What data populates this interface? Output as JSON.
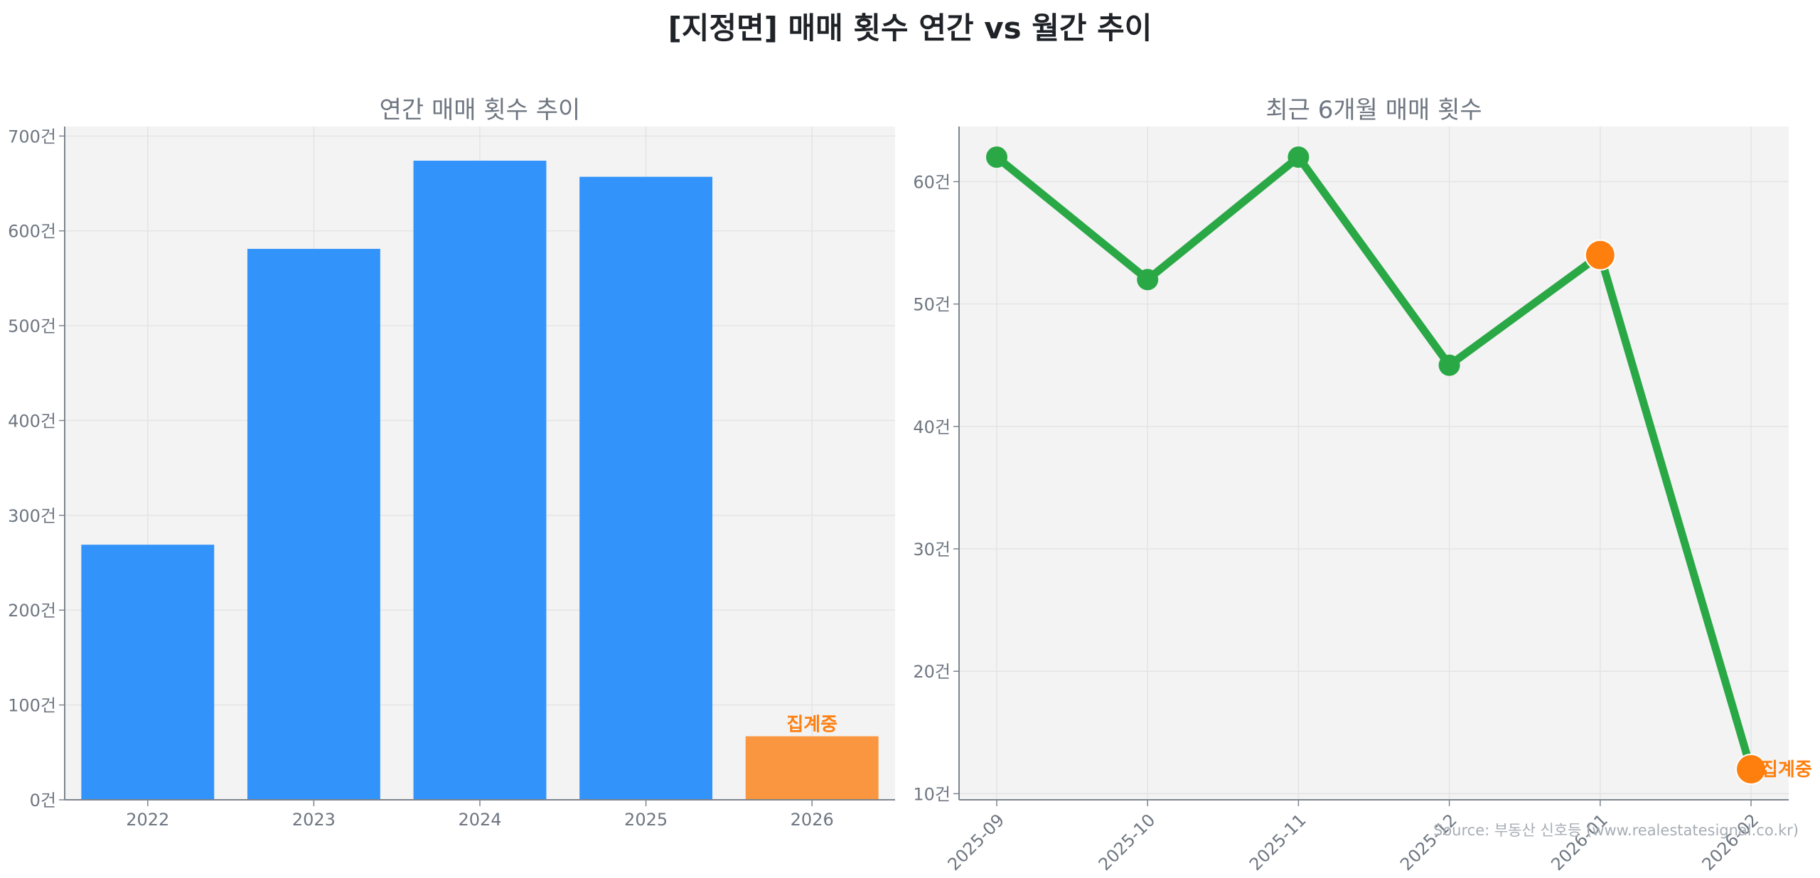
{
  "title": "[지정면] 매매 횟수 연간 vs 월간 추이",
  "source": "Source: 부동산 신호등 (www.realestatesignal.co.kr)",
  "colors": {
    "bar": "#3293fb",
    "bar_partial": "#f9963f",
    "line": "#2aa846",
    "partial_marker": "#ff7f0e",
    "plot_bg": "#f3f3f3",
    "grid": "#e4e4e4",
    "axis": "#7d858d"
  },
  "left": {
    "title": "연간 매매 횟수 추이",
    "annotation": "집계중",
    "y_ticks": [
      "0건",
      "100건",
      "200건",
      "300건",
      "400건",
      "500건",
      "600건",
      "700건"
    ]
  },
  "right": {
    "title": "최근 6개월 매매 횟수",
    "annotation": "집계중",
    "y_ticks": [
      "10건",
      "20건",
      "30건",
      "40건",
      "50건",
      "60건"
    ]
  },
  "chart_data": [
    {
      "type": "bar",
      "title": "연간 매매 횟수 추이",
      "categories": [
        "2022",
        "2023",
        "2024",
        "2025",
        "2026"
      ],
      "values": [
        269,
        581,
        674,
        657,
        67
      ],
      "partial": [
        false,
        false,
        false,
        false,
        true
      ],
      "annotations": [
        {
          "category": "2026",
          "text": "집계중"
        }
      ],
      "xlabel": "",
      "ylabel": "",
      "ylim": [
        0,
        710
      ],
      "y_tick_values": [
        0,
        100,
        200,
        300,
        400,
        500,
        600,
        700
      ],
      "y_tick_suffix": "건",
      "grid": true
    },
    {
      "type": "line",
      "title": "최근 6개월 매매 횟수",
      "categories": [
        "2025-09",
        "2025-10",
        "2025-11",
        "2025-12",
        "2026-01",
        "2026-02"
      ],
      "series": [
        {
          "name": "매매 횟수",
          "values": [
            62,
            52,
            62,
            45,
            54,
            12
          ]
        }
      ],
      "highlighted": [
        "2026-01",
        "2026-02"
      ],
      "annotations": [
        {
          "category": "2026-02",
          "text": "집계중"
        }
      ],
      "xlabel": "",
      "ylabel": "",
      "ylim": [
        9.5,
        64.5
      ],
      "y_tick_values": [
        10,
        20,
        30,
        40,
        50,
        60
      ],
      "y_tick_suffix": "건",
      "x_tick_rotation": 45,
      "grid": true
    }
  ]
}
